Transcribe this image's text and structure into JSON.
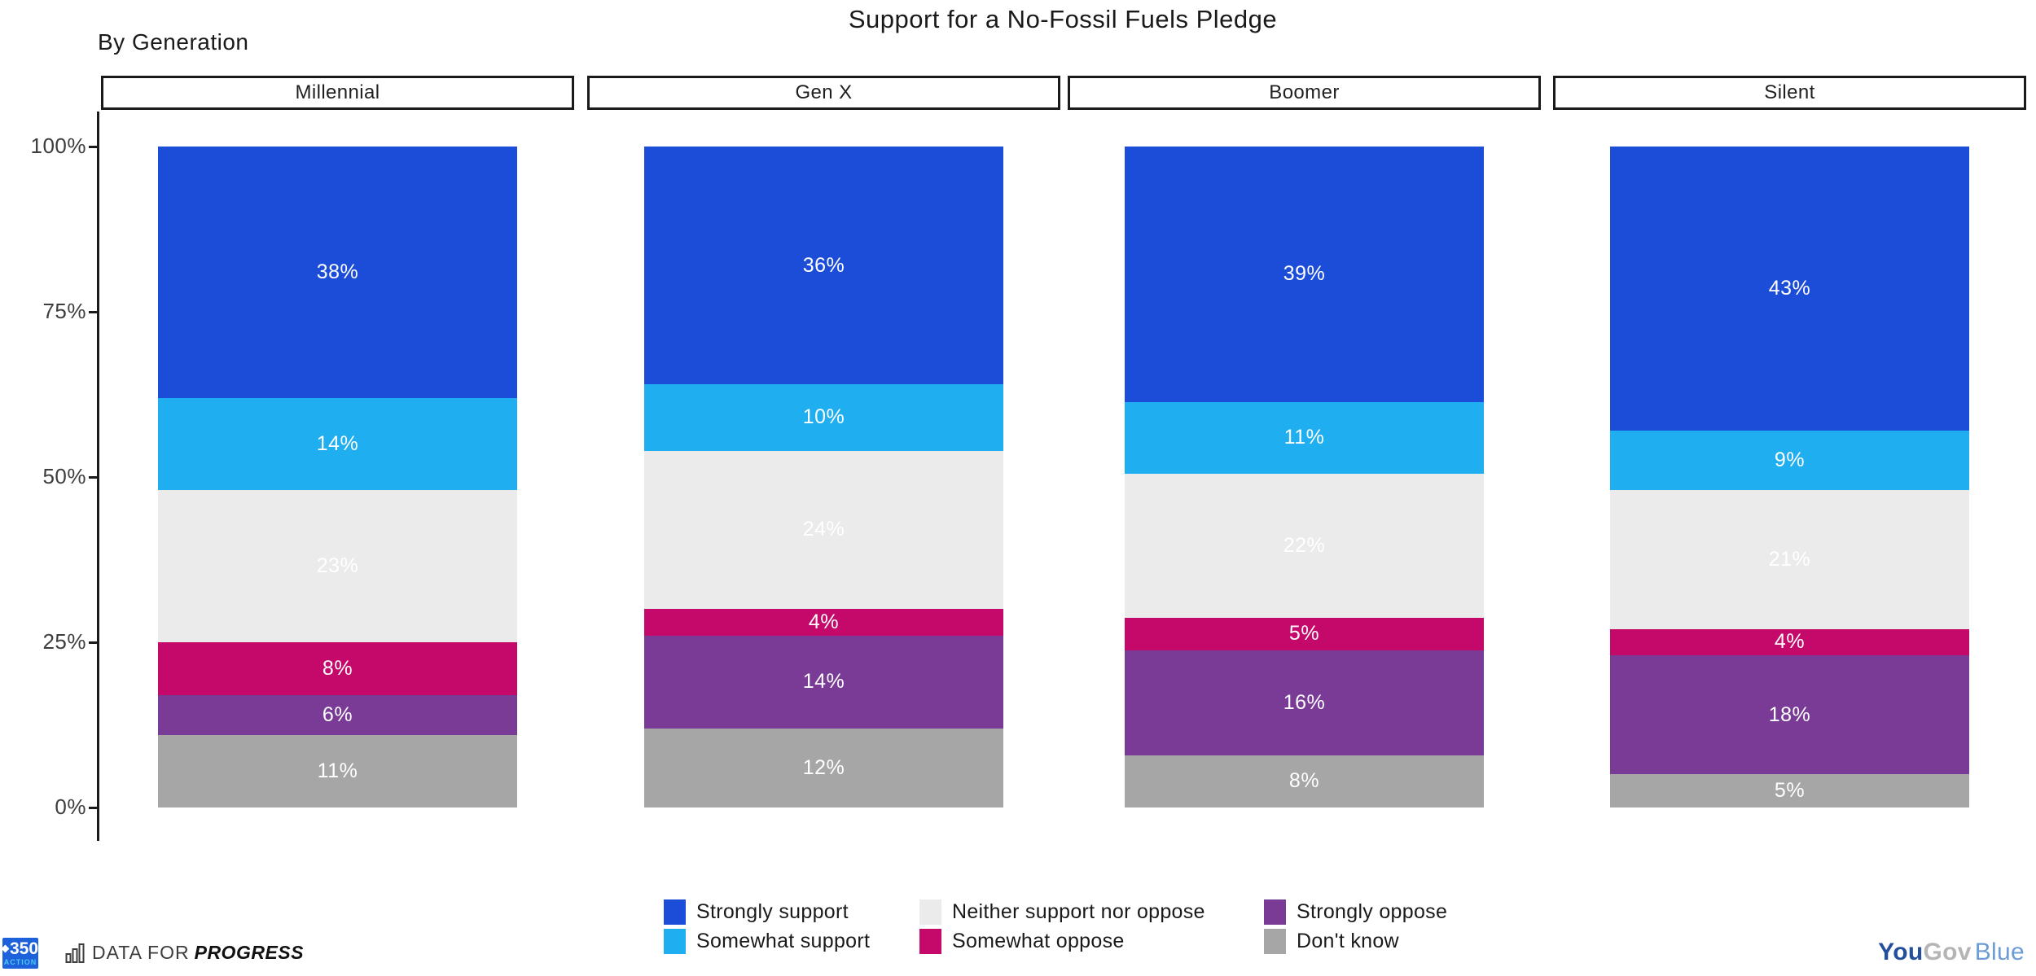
{
  "title": "Support for a No-Fossil Fuels Pledge",
  "subtitle": "By Generation",
  "chart_data": {
    "type": "bar",
    "stacked": true,
    "orientation": "vertical",
    "unit": "%",
    "categories": [
      "Millennial",
      "Gen X",
      "Boomer",
      "Silent"
    ],
    "series": [
      {
        "name": "Strongly support",
        "color": "#1B4DD8",
        "values": [
          38,
          36,
          39,
          43
        ]
      },
      {
        "name": "Somewhat support",
        "color": "#1FAFF0",
        "values": [
          14,
          10,
          11,
          9
        ]
      },
      {
        "name": "Neither support nor oppose",
        "color": "#EBEBEB",
        "values": [
          23,
          24,
          22,
          21
        ]
      },
      {
        "name": "Somewhat oppose",
        "color": "#C4096B",
        "values": [
          8,
          4,
          5,
          4
        ]
      },
      {
        "name": "Strongly oppose",
        "color": "#7A3B96",
        "values": [
          6,
          14,
          16,
          18
        ]
      },
      {
        "name": "Don't know",
        "color": "#A6A6A6",
        "values": [
          11,
          12,
          8,
          5
        ]
      }
    ],
    "y_ticks": [
      "100%",
      "75%",
      "50%",
      "25%",
      "0%"
    ],
    "ylim": [
      0,
      100
    ],
    "grid": false,
    "legend_position": "bottom",
    "value_label_color": "#ffffff"
  },
  "footer": {
    "logo_350_number": "350",
    "logo_350_word": "ACTION",
    "dfp_prefix": "DATA FOR",
    "dfp_name": "PROGRESS",
    "yougov_you": "You",
    "yougov_gov": "Gov",
    "yougov_blue": "Blue"
  }
}
